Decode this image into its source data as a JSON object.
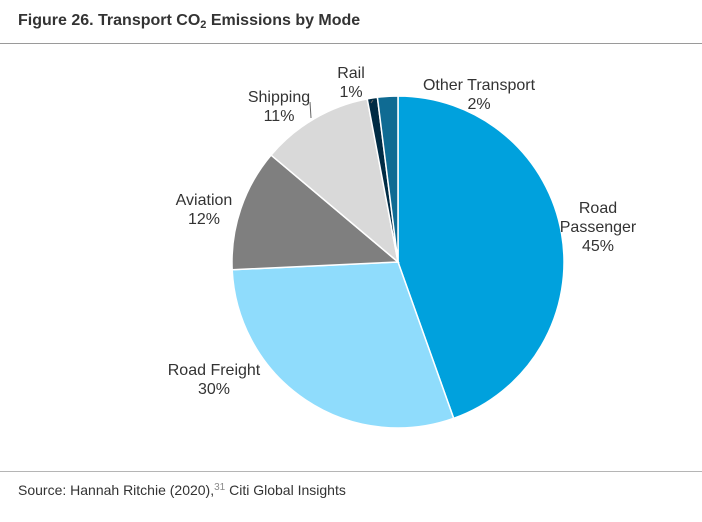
{
  "figure": {
    "title_main": "Figure 26. Transport CO",
    "title_sub": "2",
    "title_end": " Emissions by Mode"
  },
  "source": {
    "text": "Source: Hannah Ritchie (2020),",
    "ref": "31",
    "suffix": " Citi Global Insights"
  },
  "chart_data": {
    "type": "pie",
    "title": "Transport CO2 Emissions by Mode",
    "slices": [
      {
        "label": "Road Passenger",
        "value": 45,
        "value_label": "45%",
        "color": "#00a1dd"
      },
      {
        "label": "Road Freight",
        "value": 30,
        "value_label": "30%",
        "color": "#8fdcfc"
      },
      {
        "label": "Aviation",
        "value": 12,
        "value_label": "12%",
        "color": "#7f7f7f"
      },
      {
        "label": "Shipping",
        "value": 11,
        "value_label": "11%",
        "color": "#d9d9d9"
      },
      {
        "label": "Rail",
        "value": 1,
        "value_label": "1%",
        "color": "#002b44"
      },
      {
        "label": "Other Transport",
        "value": 2,
        "value_label": "2%",
        "color": "#0f6b93"
      }
    ]
  }
}
